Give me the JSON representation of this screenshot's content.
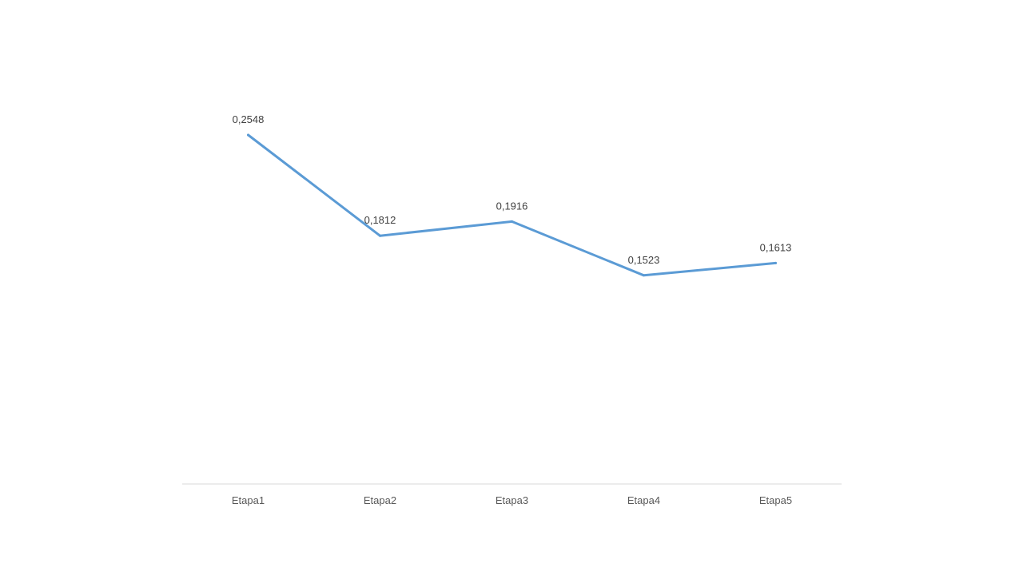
{
  "chart_data": {
    "type": "line",
    "title": "",
    "xlabel": "",
    "ylabel": "",
    "categories": [
      "Etapa1",
      "Etapa2",
      "Etapa3",
      "Etapa4",
      "Etapa5"
    ],
    "series": [
      {
        "values": [
          0.2548,
          0.1812,
          0.1916,
          0.1523,
          0.1613
        ],
        "data_labels": [
          "0,2548",
          "0,1812",
          "0,1916",
          "0,1523",
          "0,1613"
        ]
      }
    ],
    "ylim": [
      0,
      0.2548
    ],
    "grid": false,
    "legend": "none",
    "colors": {
      "series": "#5B9BD5",
      "axis": "#D9D9D9",
      "tick_text": "#595959",
      "label_text": "#404040"
    }
  }
}
